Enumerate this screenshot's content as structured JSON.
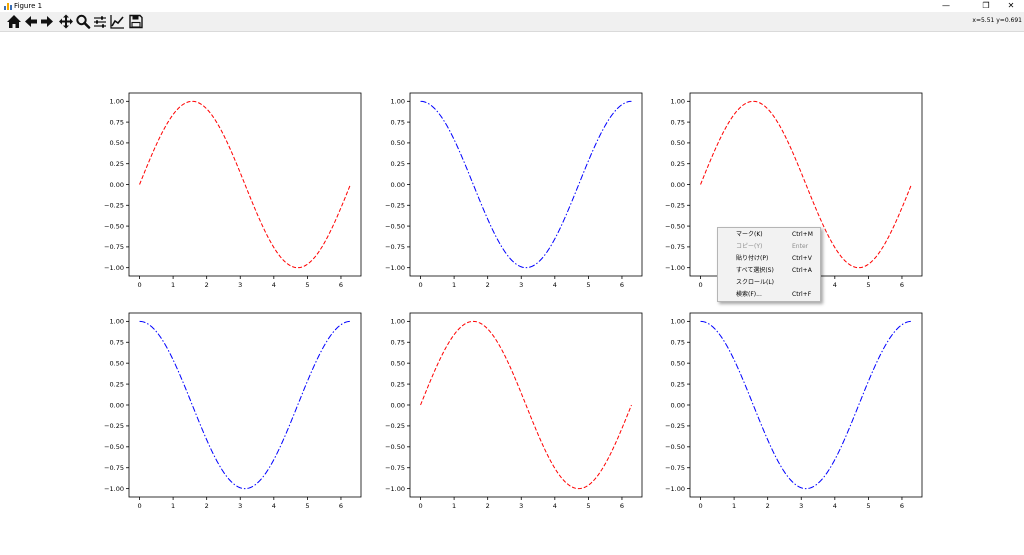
{
  "window": {
    "title": "Figure 1",
    "controls": [
      "—",
      "❐",
      "✕"
    ]
  },
  "toolbar": {
    "tools": [
      "home-icon",
      "back-icon",
      "forward-icon",
      "pan-icon",
      "zoom-icon",
      "configure-subplots-icon",
      "edit-axes-icon",
      "save-icon"
    ],
    "coords": "x=5.51 y=0.691"
  },
  "chart_data": [
    {
      "type": "line",
      "function": "sin",
      "x_range": [
        0,
        6.283
      ],
      "series": [
        {
          "color": "#ff0000",
          "linestyle": "dashed"
        }
      ],
      "xticks": [
        "0",
        "1",
        "2",
        "3",
        "4",
        "5",
        "6"
      ],
      "yticks": [
        "1.00",
        "0.75",
        "0.50",
        "0.25",
        "0.00",
        "−0.25",
        "−0.50",
        "−0.75",
        "−1.00"
      ],
      "xlim": [
        -0.314,
        6.597
      ],
      "ylim": [
        -1.1,
        1.1
      ]
    },
    {
      "type": "line",
      "function": "cos",
      "x_range": [
        0,
        6.283
      ],
      "series": [
        {
          "color": "#0000ff",
          "linestyle": "dashdot"
        }
      ],
      "xticks": [
        "0",
        "1",
        "2",
        "3",
        "4",
        "5",
        "6"
      ],
      "yticks": [
        "1.00",
        "0.75",
        "0.50",
        "0.25",
        "0.00",
        "−0.25",
        "−0.50",
        "−0.75",
        "−1.00"
      ],
      "xlim": [
        -0.314,
        6.597
      ],
      "ylim": [
        -1.1,
        1.1
      ]
    },
    {
      "type": "line",
      "function": "sin",
      "x_range": [
        0,
        6.283
      ],
      "series": [
        {
          "color": "#ff0000",
          "linestyle": "dashed"
        }
      ],
      "xticks": [
        "0",
        "1",
        "2",
        "3",
        "4",
        "5",
        "6"
      ],
      "yticks": [
        "1.00",
        "0.75",
        "0.50",
        "0.25",
        "0.00",
        "−0.25",
        "−0.50",
        "−0.75",
        "−1.00"
      ],
      "xlim": [
        -0.314,
        6.597
      ],
      "ylim": [
        -1.1,
        1.1
      ]
    },
    {
      "type": "line",
      "function": "cos",
      "x_range": [
        0,
        6.283
      ],
      "series": [
        {
          "color": "#0000ff",
          "linestyle": "dashdot"
        }
      ],
      "xticks": [
        "0",
        "1",
        "2",
        "3",
        "4",
        "5",
        "6"
      ],
      "yticks": [
        "1.00",
        "0.75",
        "0.50",
        "0.25",
        "0.00",
        "−0.25",
        "−0.50",
        "−0.75",
        "−1.00"
      ],
      "xlim": [
        -0.314,
        6.597
      ],
      "ylim": [
        -1.1,
        1.1
      ]
    },
    {
      "type": "line",
      "function": "sin",
      "x_range": [
        0,
        6.283
      ],
      "series": [
        {
          "color": "#ff0000",
          "linestyle": "dashed"
        }
      ],
      "xticks": [
        "0",
        "1",
        "2",
        "3",
        "4",
        "5",
        "6"
      ],
      "yticks": [
        "1.00",
        "0.75",
        "0.50",
        "0.25",
        "0.00",
        "−0.25",
        "−0.50",
        "−0.75",
        "−1.00"
      ],
      "xlim": [
        -0.314,
        6.597
      ],
      "ylim": [
        -1.1,
        1.1
      ]
    },
    {
      "type": "line",
      "function": "cos",
      "x_range": [
        0,
        6.283
      ],
      "series": [
        {
          "color": "#0000ff",
          "linestyle": "dashdot"
        }
      ],
      "xticks": [
        "0",
        "1",
        "2",
        "3",
        "4",
        "5",
        "6"
      ],
      "yticks": [
        "1.00",
        "0.75",
        "0.50",
        "0.25",
        "0.00",
        "−0.25",
        "−0.50",
        "−0.75",
        "−1.00"
      ],
      "xlim": [
        -0.314,
        6.597
      ],
      "ylim": [
        -1.1,
        1.1
      ]
    }
  ],
  "context_menu": {
    "items": [
      {
        "label": "マーク(K)",
        "shortcut": "Ctrl+M",
        "enabled": true
      },
      {
        "label": "コピー(Y)",
        "shortcut": "Enter",
        "enabled": false
      },
      {
        "label": "貼り付け(P)",
        "shortcut": "Ctrl+V",
        "enabled": true
      },
      {
        "label": "すべて選択(S)",
        "shortcut": "Ctrl+A",
        "enabled": true
      },
      {
        "label": "スクロール(L)",
        "shortcut": "",
        "enabled": true
      },
      {
        "label": "検索(F)...",
        "shortcut": "Ctrl+F",
        "enabled": true
      }
    ]
  }
}
